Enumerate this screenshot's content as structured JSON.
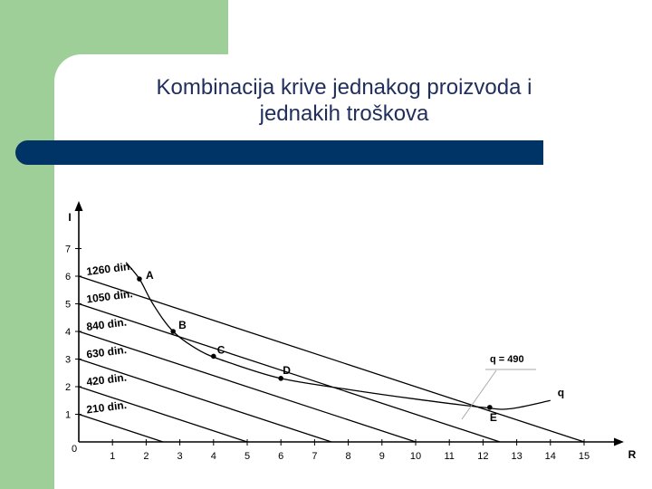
{
  "slide": {
    "title_line1": "Kombinacija krive jednakog proizvoda i",
    "title_line2": "jednakih troškova"
  },
  "chart_data": {
    "type": "line",
    "xlabel": "R",
    "ylabel": "I",
    "origin_label": "0",
    "xticks": [
      1,
      2,
      3,
      4,
      5,
      6,
      7,
      8,
      9,
      10,
      11,
      12,
      13,
      14,
      15
    ],
    "yticks": [
      1,
      2,
      3,
      4,
      5,
      6,
      7
    ],
    "xlim": [
      0,
      15.8
    ],
    "ylim": [
      0,
      7.6
    ],
    "isocost_lines": [
      {
        "label": "1260 din.",
        "y_intercept": 6.0,
        "x_intercept": 15.0
      },
      {
        "label": "1050 din.",
        "y_intercept": 5.0,
        "x_intercept": 12.5
      },
      {
        "label": "840 din.",
        "y_intercept": 4.0,
        "x_intercept": 10.0
      },
      {
        "label": "630 din.",
        "y_intercept": 3.0,
        "x_intercept": 7.5
      },
      {
        "label": "420 din.",
        "y_intercept": 2.0,
        "x_intercept": 5.0
      },
      {
        "label": "210 din.",
        "y_intercept": 1.0,
        "x_intercept": 2.5
      }
    ],
    "isoquant": {
      "label": "q",
      "annotation": "q = 490",
      "points": [
        [
          1.4,
          6.5
        ],
        [
          1.8,
          5.9
        ],
        [
          2.2,
          5.0
        ],
        [
          2.8,
          4.0
        ],
        [
          3.6,
          3.3
        ],
        [
          4.4,
          2.9
        ],
        [
          6.0,
          2.3
        ],
        [
          8.0,
          1.9
        ],
        [
          10.0,
          1.55
        ],
        [
          12.0,
          1.25
        ],
        [
          12.8,
          1.2
        ],
        [
          14.0,
          1.5
        ]
      ]
    },
    "points": [
      {
        "label": "A",
        "x": 1.8,
        "y": 5.9
      },
      {
        "label": "B",
        "x": 2.8,
        "y": 4.0
      },
      {
        "label": "C",
        "x": 4.0,
        "y": 3.1
      },
      {
        "label": "D",
        "x": 6.0,
        "y": 2.3
      },
      {
        "label": "E",
        "x": 12.2,
        "y": 1.25
      }
    ]
  }
}
